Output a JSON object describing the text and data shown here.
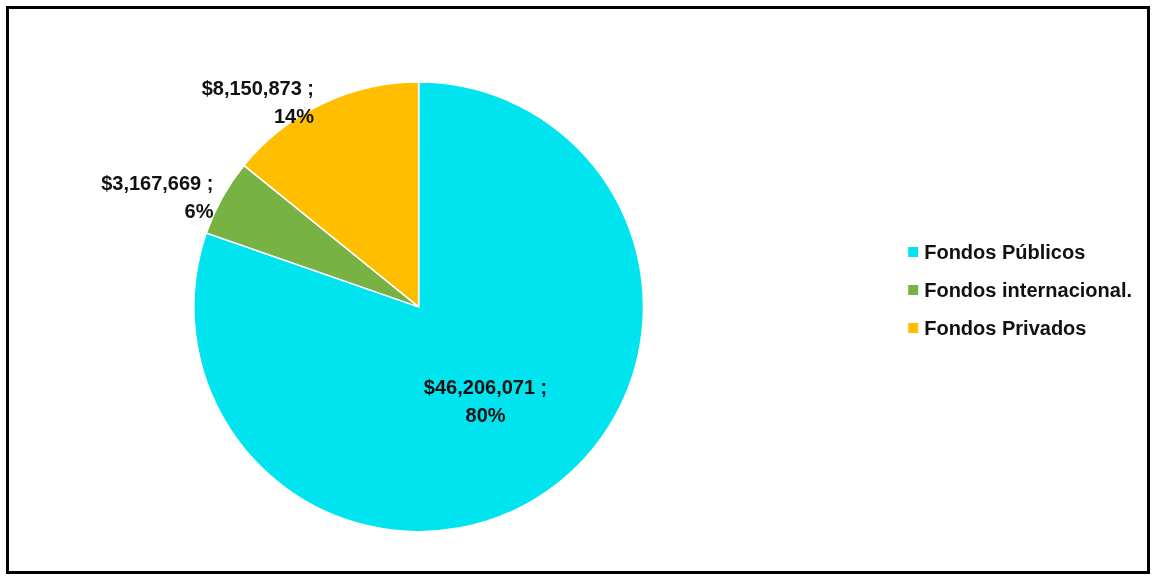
{
  "chart_data": {
    "type": "pie",
    "categories": [
      "Fondos Públicos",
      "Fondos internacional.",
      "Fondos Privados"
    ],
    "values": [
      46206071,
      3167669,
      8150873
    ],
    "colors": [
      "#00e4ef",
      "#78b144",
      "#ffbf00"
    ],
    "value_labels": [
      "$46,206,071 ;\n80%",
      "$3,167,669 ;\n6%",
      "$8,150,873 ;\n14%"
    ],
    "legend": "right"
  }
}
